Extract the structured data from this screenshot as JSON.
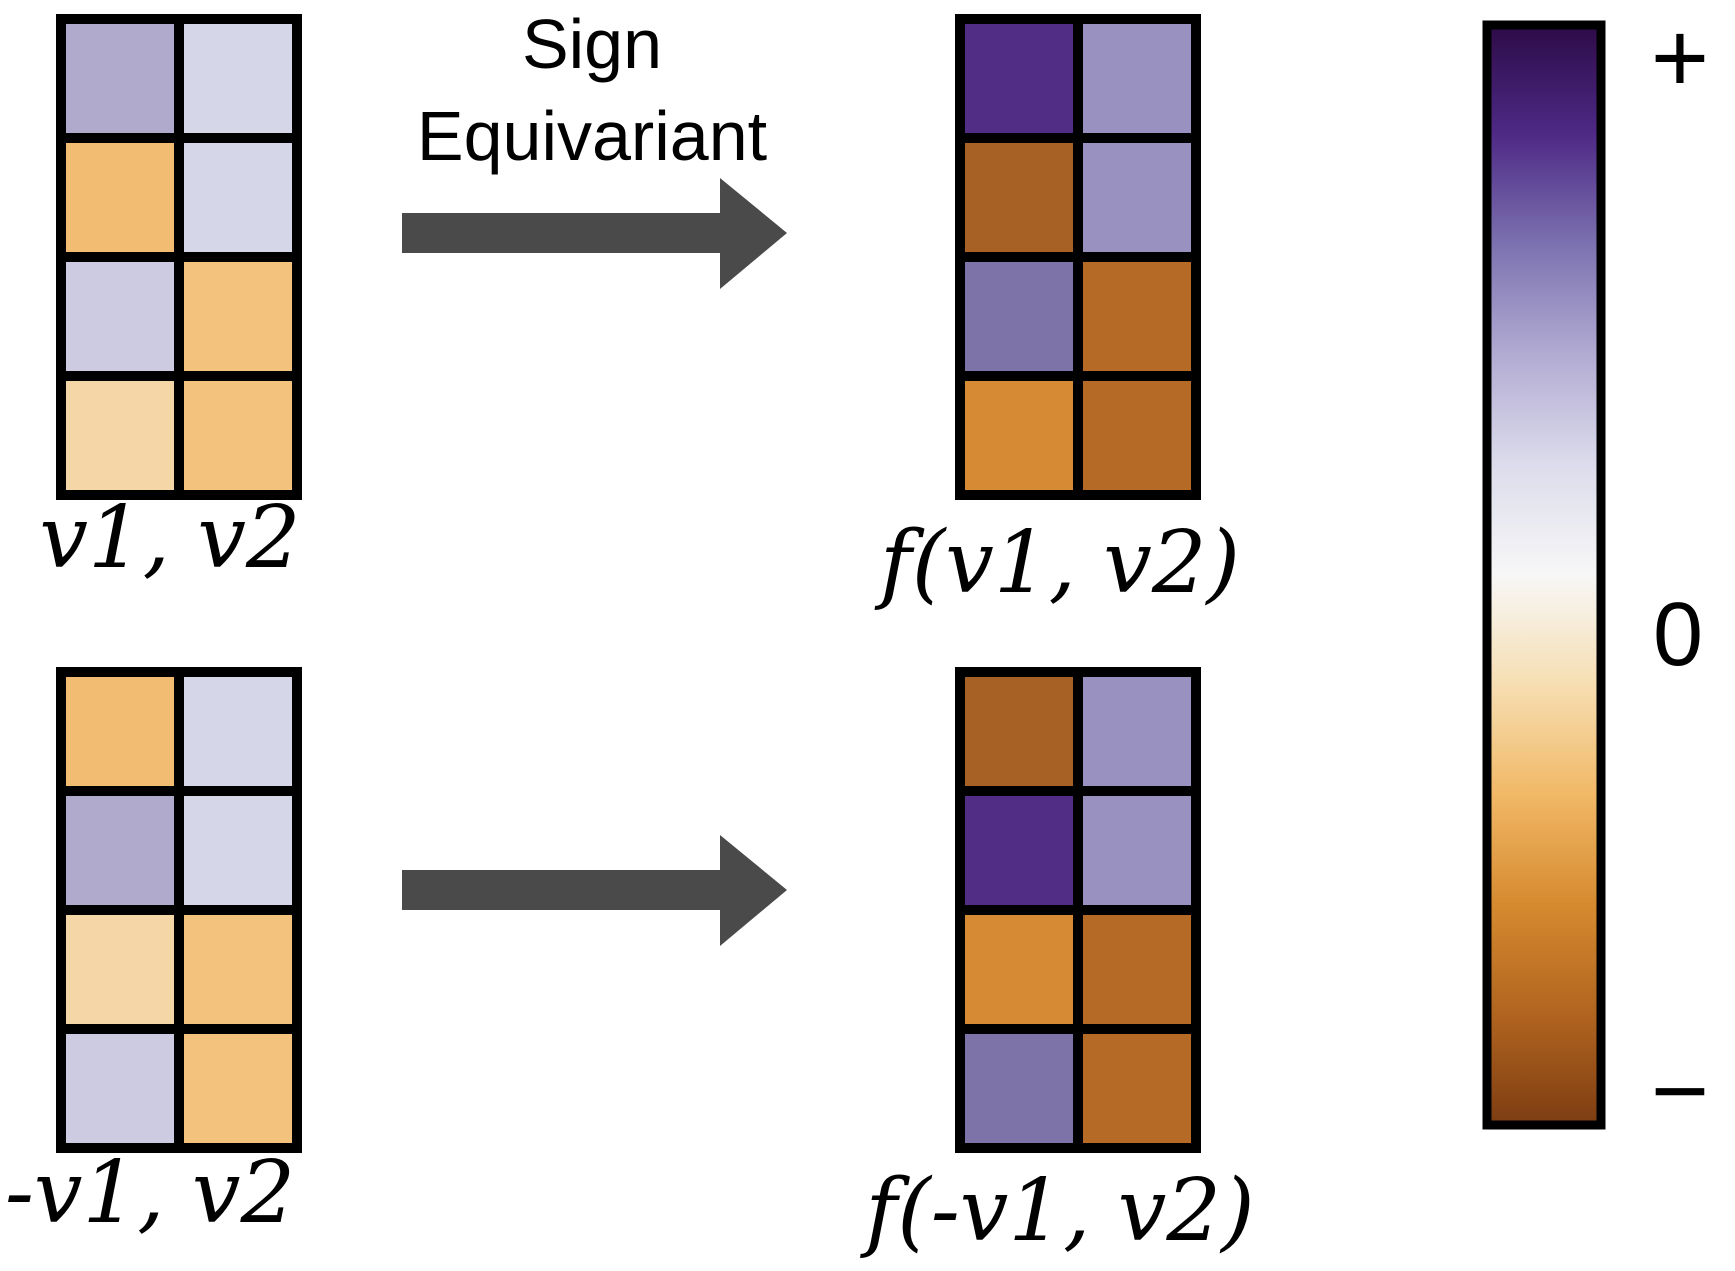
{
  "colors": {
    "border": "#000000",
    "arrow": "#4a4a4a",
    "text": "#000000",
    "colorbar_stops": [
      "#2d0b47",
      "#4e2a86",
      "#7c72b0",
      "#b2abd2",
      "#dcdcec",
      "#f7f7f7",
      "#f6deb2",
      "#f1b866",
      "#d68a2f",
      "#b0641f",
      "#7d3d12"
    ]
  },
  "arrow_label": {
    "line1": "Sign",
    "line2": "Equivariant"
  },
  "colorbar": {
    "top": "+",
    "middle": "0",
    "bottom": "−"
  },
  "matrices": [
    {
      "id": "input-top",
      "label": "v1, v2",
      "cells": [
        [
          "#b0aacd",
          "#d5d6e8"
        ],
        [
          "#f2bd73",
          "#d5d6e8"
        ],
        [
          "#cdcbe2",
          "#f3c37e"
        ],
        [
          "#f5d6a6",
          "#f3c37e"
        ]
      ]
    },
    {
      "id": "output-top",
      "label": "f(v1, v2)",
      "cells": [
        [
          "#522d86",
          "#9992c1"
        ],
        [
          "#a86124",
          "#9992c1"
        ],
        [
          "#7d73a9",
          "#b56b26"
        ],
        [
          "#d68a34",
          "#b56b26"
        ]
      ]
    },
    {
      "id": "input-bottom",
      "label": "-v1, v2",
      "cells": [
        [
          "#f2bd73",
          "#d5d6e8"
        ],
        [
          "#b0aacd",
          "#d5d6e8"
        ],
        [
          "#f5d6a6",
          "#f3c37e"
        ],
        [
          "#cdcbe2",
          "#f3c37e"
        ]
      ]
    },
    {
      "id": "output-bottom",
      "label": "f(-v1, v2)",
      "cells": [
        [
          "#a86124",
          "#9992c1"
        ],
        [
          "#522d86",
          "#9992c1"
        ],
        [
          "#d68a34",
          "#b56b26"
        ],
        [
          "#7d73a9",
          "#b56b26"
        ]
      ]
    }
  ]
}
